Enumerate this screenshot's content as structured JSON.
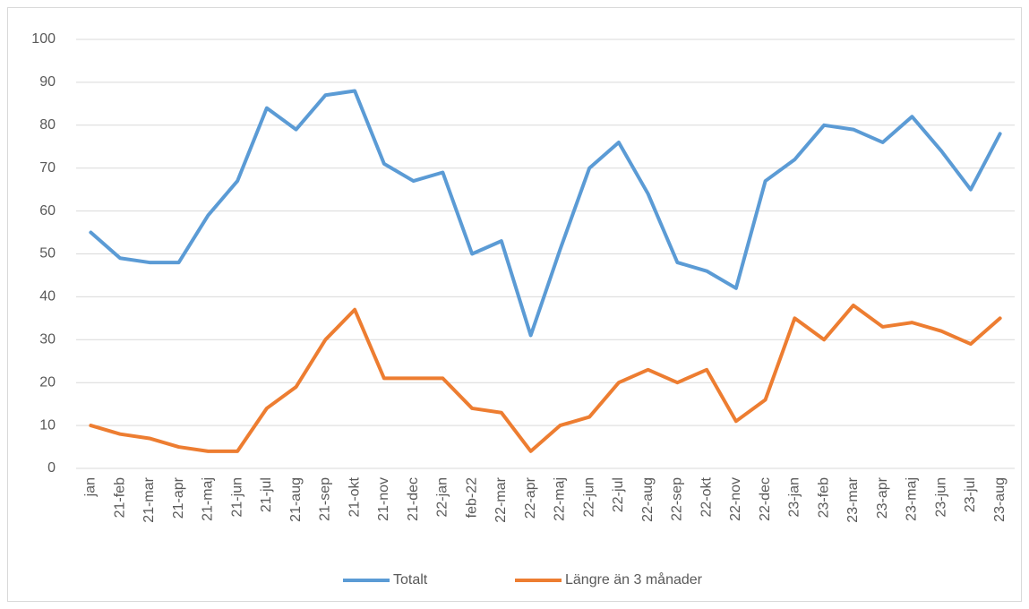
{
  "chart_data": {
    "type": "line",
    "categories": [
      "jan",
      "21-feb",
      "21-mar",
      "21-apr",
      "21-maj",
      "21-jun",
      "21-jul",
      "21-aug",
      "21-sep",
      "21-okt",
      "21-nov",
      "21-dec",
      "22-jan",
      "feb-22",
      "22-mar",
      "22-apr",
      "22-maj",
      "22-jun",
      "22-jul",
      "22-aug",
      "22-sep",
      "22-okt",
      "22-nov",
      "22-dec",
      "23-jan",
      "23-feb",
      "23-mar",
      "23-apr",
      "23-maj",
      "23-jun",
      "23-jul",
      "23-aug"
    ],
    "series": [
      {
        "name": "Totalt",
        "color": "#5b9bd5",
        "values": [
          55,
          49,
          48,
          48,
          59,
          67,
          84,
          79,
          87,
          88,
          71,
          67,
          69,
          50,
          53,
          31,
          51,
          70,
          76,
          64,
          48,
          46,
          42,
          67,
          72,
          80,
          79,
          76,
          82,
          74,
          65,
          78
        ]
      },
      {
        "name": "Längre än 3 månader",
        "color": "#ed7d31",
        "values": [
          10,
          8,
          7,
          5,
          4,
          4,
          14,
          19,
          30,
          37,
          21,
          21,
          21,
          14,
          13,
          4,
          10,
          12,
          20,
          23,
          20,
          23,
          11,
          16,
          35,
          30,
          38,
          33,
          34,
          32,
          29,
          35
        ]
      }
    ],
    "ylim": [
      0,
      100
    ],
    "yticks": [
      0,
      10,
      20,
      30,
      40,
      50,
      60,
      70,
      80,
      90,
      100
    ],
    "grid": true,
    "legend": "bottom"
  }
}
